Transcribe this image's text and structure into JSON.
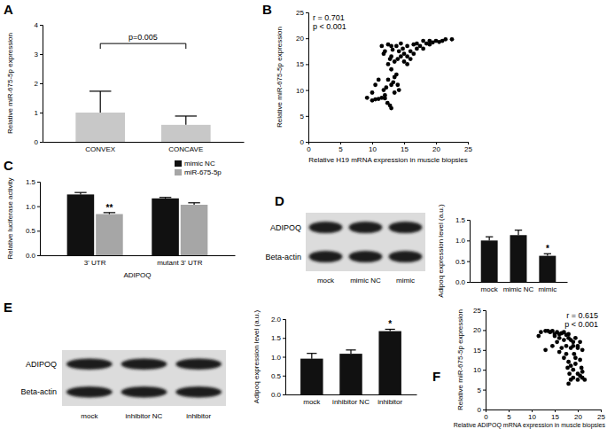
{
  "chart_data": [
    {
      "type": "bar",
      "panel": "A",
      "ylabel": "Relative miR-675-5p expression",
      "categories": [
        "CONVEX",
        "CONCAVE"
      ],
      "values": [
        1.0,
        0.58
      ],
      "errors": [
        0.73,
        0.3
      ],
      "color": "#c8c8c8",
      "ylim": [
        0,
        4
      ],
      "yticks": [
        0,
        1,
        2,
        3,
        4
      ],
      "annotation": "p=0.005"
    },
    {
      "type": "scatter",
      "panel": "B",
      "ylabel": "Relative miR-675-5p expression",
      "xlabel": "Relative H19 mRNA expression in muscle biopsies",
      "annotations": [
        "r = 0.701",
        "p < 0.001"
      ],
      "color": "#000000",
      "marker": "circle",
      "xlim": [
        0,
        25
      ],
      "xticks": [
        0,
        5,
        10,
        15,
        20,
        25
      ],
      "ylim": [
        0,
        25
      ],
      "yticks": [
        0,
        5,
        10,
        15,
        20,
        25
      ],
      "x": [
        9.2,
        10,
        10.5,
        11,
        11.5,
        12,
        12.4,
        12.8,
        13,
        11.8,
        12.2,
        13,
        13.3,
        12.5,
        13.5,
        13.8,
        14,
        12,
        13.5,
        14.2,
        13,
        12.5,
        13.5,
        14,
        13,
        12,
        13,
        12.5,
        11.5,
        11.8,
        13.8,
        14.2,
        14.5,
        15,
        15.5,
        16,
        15,
        14.8,
        15.5,
        16,
        16.5,
        17,
        17.5,
        18,
        18.5,
        19,
        19.5,
        20,
        20.5,
        21,
        21.5,
        22.5,
        17,
        18,
        16.5,
        19,
        15.5,
        14.5,
        13.2,
        12.8,
        10.5,
        11,
        10
      ],
      "y": [
        8.5,
        8,
        8.2,
        8.3,
        8.5,
        8.4,
        7.5,
        7,
        6.5,
        10,
        10.5,
        11,
        11.5,
        12,
        12.5,
        13,
        11,
        9,
        9.5,
        10,
        14,
        15,
        15.5,
        16,
        16.5,
        17.5,
        18.5,
        18.8,
        18.5,
        17,
        18.5,
        17.5,
        16.5,
        15.5,
        15,
        16,
        17,
        18,
        18.5,
        17.5,
        17,
        18,
        18.5,
        18,
        19,
        18.8,
        19.2,
        19.5,
        19.3,
        19.5,
        19.8,
        19.8,
        19,
        19.5,
        18.8,
        19.5,
        16.5,
        19,
        17.8,
        16,
        11,
        12,
        9.5
      ]
    },
    {
      "type": "bar",
      "panel": "C",
      "ylabel": "Relative luciferase activity",
      "xlabel": "ADIPOQ",
      "categories": [
        "3' UTR",
        "mutant 3' UTR"
      ],
      "legend": "top-right",
      "series": [
        {
          "name": "mimic NC",
          "color": "#111111",
          "values": [
            1.24,
            1.16
          ],
          "errors": [
            0.04,
            0.02
          ],
          "significance": [
            null,
            null
          ]
        },
        {
          "name": "miR-675-5p",
          "color": "#a6a6a6",
          "values": [
            0.84,
            1.03
          ],
          "errors": [
            0.03,
            0.04
          ],
          "significance": [
            "**",
            null
          ]
        }
      ],
      "ylim": [
        0,
        1.5
      ],
      "yticks": [
        {
          "value": 0,
          "label": "0.0"
        },
        {
          "value": 0.5,
          "label": "0.5"
        },
        {
          "value": 1,
          "label": "1.0"
        },
        {
          "value": 1.5,
          "label": "1.5"
        }
      ]
    },
    {
      "type": "blot",
      "panel": "D",
      "rows": [
        "ADIPOQ",
        "Beta-actin"
      ],
      "lanes": [
        "mock",
        "mimic NC",
        "mimic"
      ]
    },
    {
      "type": "bar",
      "ylabel": "Adipoq expression level (a.u.)",
      "categories": [
        "mock",
        "mimic NC",
        "mimic"
      ],
      "values": [
        1.0,
        1.13,
        0.63
      ],
      "errors": [
        0.09,
        0.12,
        0.05
      ],
      "significance": [
        null,
        null,
        "*"
      ],
      "color": "#111111",
      "ylim": [
        0,
        1.5
      ],
      "yticks": [
        {
          "value": 0,
          "label": "0.0"
        },
        {
          "value": 0.5,
          "label": "0.5"
        },
        {
          "value": 1,
          "label": "1.0"
        },
        {
          "value": 1.5,
          "label": "1.5"
        }
      ]
    },
    {
      "type": "blot",
      "panel": "E",
      "rows": [
        "ADIPOQ",
        "Beta-actin"
      ],
      "lanes": [
        "mock",
        "inhibitor NC",
        "inhibitor"
      ]
    },
    {
      "type": "bar",
      "ylabel": "Adipoq expression level (a.u.)",
      "categories": [
        "mock",
        "inhibitor NC",
        "inhibitor"
      ],
      "values": [
        0.95,
        1.08,
        1.68
      ],
      "errors": [
        0.14,
        0.1,
        0.05
      ],
      "significance": [
        null,
        null,
        "*"
      ],
      "color": "#111111",
      "ylim": [
        0,
        2
      ],
      "yticks": [
        {
          "value": 0,
          "label": "0.0"
        },
        {
          "value": 0.5,
          "label": "0.5"
        },
        {
          "value": 1,
          "label": "1.0"
        },
        {
          "value": 1.5,
          "label": "1.5"
        },
        {
          "value": 2,
          "label": "2.0"
        }
      ]
    },
    {
      "type": "scatter",
      "panel": "F",
      "ylabel": "Relative miR-675-5p expression",
      "xlabel": "Relative ADIPOQ mRNA expression in muscle biopsies",
      "annotations": [
        "r = 0.615",
        "p < 0.001"
      ],
      "color": "#000000",
      "marker": "circle",
      "xlim": [
        0,
        25
      ],
      "xticks": [
        0,
        5,
        10,
        15,
        20,
        25
      ],
      "ylim": [
        0,
        25
      ],
      "yticks": [
        0,
        5,
        10,
        15,
        20,
        25
      ],
      "x": [
        12,
        13,
        13.5,
        14,
        14.5,
        15,
        15.5,
        16,
        16.5,
        17,
        17.5,
        18,
        15,
        16,
        17,
        18,
        18.5,
        19,
        19.5,
        20,
        20.5,
        15.5,
        14.5,
        16.5,
        17.5,
        18.5,
        19,
        20,
        21,
        17,
        18,
        18.5,
        19,
        19.5,
        20,
        20.5,
        21,
        19,
        18.5,
        18,
        20,
        21,
        19.5,
        20.5,
        17.5,
        16,
        13,
        11.5,
        21.5,
        20.8,
        18.2,
        17.8,
        19.2
      ],
      "y": [
        19.5,
        19.8,
        19.8,
        19.5,
        19.8,
        19,
        19.5,
        19,
        19.2,
        19.5,
        18.8,
        19,
        18.5,
        18,
        17.5,
        18,
        17.5,
        17,
        18,
        16,
        17,
        17,
        16,
        15.5,
        16,
        15.5,
        16,
        15.5,
        15,
        13,
        12,
        11,
        10,
        11.5,
        9,
        8.5,
        8,
        8,
        7.5,
        6.5,
        7.5,
        9.5,
        13,
        12.5,
        14,
        14.5,
        15,
        18.5,
        7.5,
        10.5,
        9,
        10.5,
        14
      ]
    }
  ]
}
